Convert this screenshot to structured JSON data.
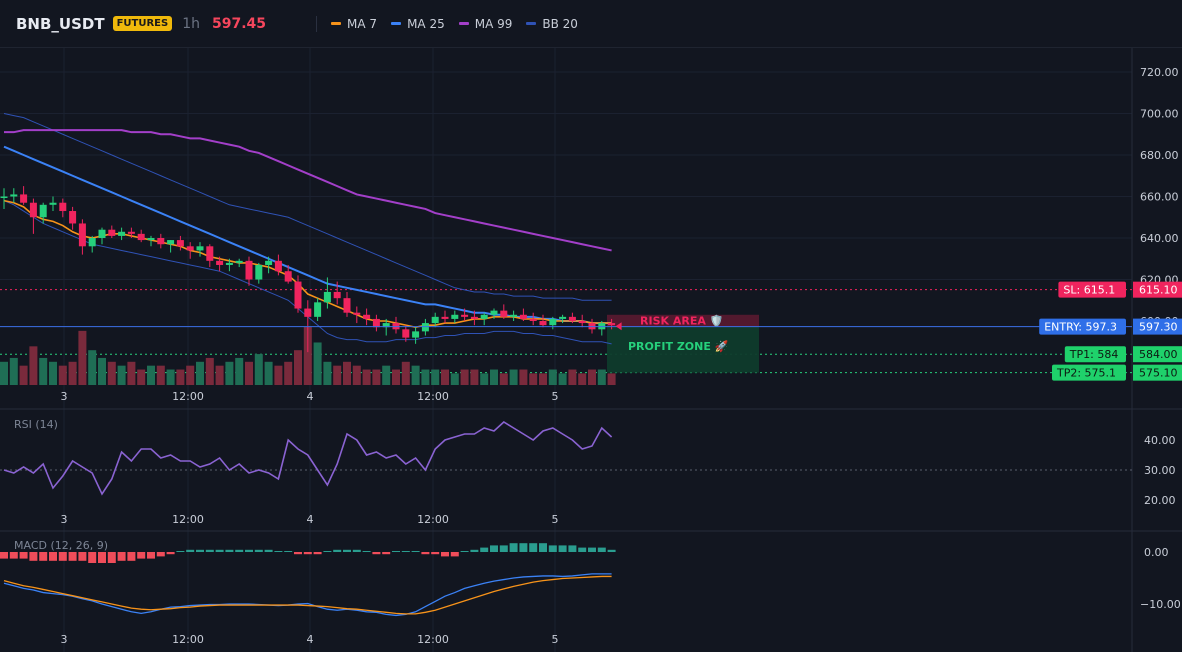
{
  "header": {
    "symbol": "BNB_USDT",
    "market_badge": "FUTURES",
    "timeframe": "1h",
    "last_price": "597.45",
    "legend": [
      {
        "label": "MA 7",
        "color": "#f7931a"
      },
      {
        "label": "MA 25",
        "color": "#3b82f6"
      },
      {
        "label": "MA 99",
        "color": "#a33fc9"
      },
      {
        "label": "BB 20",
        "color": "#2f52b5"
      }
    ]
  },
  "colors": {
    "up": "#26d07c",
    "down": "#f0245e",
    "background": "#121620",
    "grid": "#1b2130"
  },
  "price_axis_ticks": [
    "720.00",
    "700.00",
    "680.00",
    "660.00",
    "640.00",
    "620.00",
    "600.00"
  ],
  "time_axis_labels": [
    "3",
    "12:00",
    "4",
    "12:00",
    "5"
  ],
  "levels": {
    "sl": {
      "tag": "SL: 615.1",
      "value": "615.10"
    },
    "entry": {
      "tag": "ENTRY: 597.3",
      "value": "597.30"
    },
    "tp1": {
      "tag": "TP1: 584",
      "value": "584.00"
    },
    "tp2": {
      "tag": "TP2: 575.1",
      "value": "575.10"
    }
  },
  "zones": {
    "risk_label": "RISK AREA 🛡️",
    "profit_label": "PROFIT ZONE 🚀"
  },
  "rsi": {
    "title": "RSI (14)",
    "ticks": [
      "40.00",
      "30.00",
      "20.00"
    ]
  },
  "macd": {
    "title": "MACD (12, 26, 9)",
    "ticks": [
      "0.00",
      "−10.00"
    ]
  },
  "chart_data": {
    "type": "candlestick",
    "interval": "1h",
    "price_range": [
      572,
      732
    ],
    "series_names": [
      "MA 7",
      "MA 25",
      "MA 99",
      "BB 20"
    ],
    "candles": [
      {
        "o": 660,
        "h": 664,
        "l": 654,
        "c": 660
      },
      {
        "o": 660,
        "h": 664,
        "l": 657,
        "c": 661
      },
      {
        "o": 661,
        "h": 665,
        "l": 656,
        "c": 657
      },
      {
        "o": 657,
        "h": 659,
        "l": 642,
        "c": 650
      },
      {
        "o": 650,
        "h": 657,
        "l": 647,
        "c": 656
      },
      {
        "o": 656,
        "h": 660,
        "l": 653,
        "c": 657
      },
      {
        "o": 657,
        "h": 659,
        "l": 650,
        "c": 653
      },
      {
        "o": 653,
        "h": 655,
        "l": 644,
        "c": 647
      },
      {
        "o": 647,
        "h": 649,
        "l": 632,
        "c": 636
      },
      {
        "o": 636,
        "h": 641,
        "l": 633,
        "c": 640
      },
      {
        "o": 640,
        "h": 645,
        "l": 637,
        "c": 644
      },
      {
        "o": 644,
        "h": 646,
        "l": 640,
        "c": 641
      },
      {
        "o": 641,
        "h": 645,
        "l": 639,
        "c": 643
      },
      {
        "o": 643,
        "h": 645,
        "l": 640,
        "c": 642
      },
      {
        "o": 642,
        "h": 644,
        "l": 638,
        "c": 639
      },
      {
        "o": 639,
        "h": 641,
        "l": 636,
        "c": 640
      },
      {
        "o": 640,
        "h": 642,
        "l": 635,
        "c": 637
      },
      {
        "o": 637,
        "h": 639,
        "l": 633,
        "c": 639
      },
      {
        "o": 639,
        "h": 641,
        "l": 634,
        "c": 636
      },
      {
        "o": 636,
        "h": 638,
        "l": 630,
        "c": 634
      },
      {
        "o": 634,
        "h": 638,
        "l": 631,
        "c": 636
      },
      {
        "o": 636,
        "h": 637,
        "l": 626,
        "c": 629
      },
      {
        "o": 629,
        "h": 631,
        "l": 624,
        "c": 627
      },
      {
        "o": 627,
        "h": 630,
        "l": 624,
        "c": 628
      },
      {
        "o": 628,
        "h": 630,
        "l": 626,
        "c": 629
      },
      {
        "o": 629,
        "h": 631,
        "l": 617,
        "c": 620
      },
      {
        "o": 620,
        "h": 628,
        "l": 618,
        "c": 627
      },
      {
        "o": 627,
        "h": 631,
        "l": 623,
        "c": 629
      },
      {
        "o": 629,
        "h": 632,
        "l": 622,
        "c": 624
      },
      {
        "o": 624,
        "h": 627,
        "l": 618,
        "c": 619
      },
      {
        "o": 619,
        "h": 622,
        "l": 604,
        "c": 606
      },
      {
        "o": 606,
        "h": 610,
        "l": 585,
        "c": 602
      },
      {
        "o": 602,
        "h": 611,
        "l": 600,
        "c": 609
      },
      {
        "o": 609,
        "h": 621,
        "l": 606,
        "c": 614
      },
      {
        "o": 614,
        "h": 619,
        "l": 608,
        "c": 611
      },
      {
        "o": 611,
        "h": 614,
        "l": 602,
        "c": 604
      },
      {
        "o": 604,
        "h": 607,
        "l": 599,
        "c": 603
      },
      {
        "o": 603,
        "h": 606,
        "l": 598,
        "c": 601
      },
      {
        "o": 601,
        "h": 603,
        "l": 595,
        "c": 597
      },
      {
        "o": 597,
        "h": 601,
        "l": 593,
        "c": 599
      },
      {
        "o": 599,
        "h": 602,
        "l": 594,
        "c": 596
      },
      {
        "o": 596,
        "h": 598,
        "l": 590,
        "c": 592
      },
      {
        "o": 592,
        "h": 597,
        "l": 589,
        "c": 595
      },
      {
        "o": 595,
        "h": 601,
        "l": 593,
        "c": 599
      },
      {
        "o": 599,
        "h": 604,
        "l": 597,
        "c": 602
      },
      {
        "o": 602,
        "h": 605,
        "l": 599,
        "c": 601
      },
      {
        "o": 601,
        "h": 605,
        "l": 599,
        "c": 603
      },
      {
        "o": 603,
        "h": 606,
        "l": 600,
        "c": 602
      },
      {
        "o": 602,
        "h": 605,
        "l": 598,
        "c": 601
      },
      {
        "o": 601,
        "h": 604,
        "l": 598,
        "c": 603
      },
      {
        "o": 603,
        "h": 606,
        "l": 601,
        "c": 605
      },
      {
        "o": 605,
        "h": 608,
        "l": 601,
        "c": 602
      },
      {
        "o": 602,
        "h": 605,
        "l": 600,
        "c": 603
      },
      {
        "o": 603,
        "h": 606,
        "l": 600,
        "c": 601
      },
      {
        "o": 601,
        "h": 604,
        "l": 598,
        "c": 600
      },
      {
        "o": 600,
        "h": 603,
        "l": 597,
        "c": 598
      },
      {
        "o": 598,
        "h": 602,
        "l": 596,
        "c": 601
      },
      {
        "o": 601,
        "h": 603,
        "l": 599,
        "c": 602
      },
      {
        "o": 602,
        "h": 604,
        "l": 599,
        "c": 600
      },
      {
        "o": 600,
        "h": 603,
        "l": 597,
        "c": 599
      },
      {
        "o": 599,
        "h": 601,
        "l": 594,
        "c": 596
      },
      {
        "o": 596,
        "h": 600,
        "l": 593,
        "c": 599
      },
      {
        "o": 599,
        "h": 601,
        "l": 596,
        "c": 598
      }
    ],
    "volume": [
      6,
      7,
      5,
      10,
      7,
      6,
      5,
      6,
      14,
      9,
      7,
      6,
      5,
      6,
      4,
      5,
      5,
      4,
      4,
      5,
      6,
      7,
      5,
      6,
      7,
      6,
      8,
      6,
      5,
      6,
      9,
      15,
      11,
      6,
      5,
      6,
      5,
      4,
      4,
      5,
      4,
      6,
      5,
      4,
      4,
      4,
      3,
      4,
      4,
      3,
      4,
      3,
      4,
      4,
      3,
      3,
      4,
      3,
      4,
      3,
      4,
      4,
      3
    ],
    "ma7": [
      658,
      657,
      655,
      651,
      649,
      648,
      646,
      643,
      641,
      640,
      641,
      642,
      642,
      641,
      640,
      639,
      638,
      637,
      636,
      634,
      633,
      631,
      630,
      629,
      628,
      628,
      627,
      626,
      624,
      622,
      618,
      613,
      611,
      609,
      607,
      605,
      603,
      601,
      600,
      600,
      599,
      598,
      597,
      598,
      598,
      599,
      599,
      600,
      601,
      601,
      602,
      602,
      602,
      601,
      601,
      601,
      600,
      600,
      600,
      600,
      599,
      599,
      599
    ],
    "ma25": [
      684,
      682,
      680,
      678,
      676,
      674,
      672,
      670,
      668,
      666,
      664,
      662,
      660,
      658,
      656,
      654,
      652,
      650,
      648,
      646,
      644,
      642,
      640,
      638,
      636,
      634,
      632,
      630,
      628,
      626,
      624,
      622,
      620,
      618,
      617,
      616,
      615,
      614,
      613,
      612,
      611,
      610,
      609,
      608,
      608,
      607,
      606,
      605,
      604,
      604,
      603,
      603,
      602,
      602,
      602,
      601,
      601,
      600,
      600,
      600,
      599,
      599,
      599
    ],
    "ma99": [
      691,
      691,
      692,
      692,
      692,
      692,
      692,
      692,
      692,
      692,
      692,
      692,
      692,
      691,
      691,
      691,
      690,
      690,
      689,
      688,
      688,
      687,
      686,
      685,
      684,
      682,
      681,
      679,
      677,
      675,
      673,
      671,
      669,
      667,
      665,
      663,
      661,
      660,
      659,
      658,
      657,
      656,
      655,
      654,
      652,
      651,
      650,
      649,
      648,
      647,
      646,
      645,
      644,
      643,
      642,
      641,
      640,
      639,
      638,
      637,
      636,
      635,
      634
    ],
    "bb_upper": [
      700,
      699,
      698,
      696,
      694,
      692,
      690,
      688,
      686,
      684,
      682,
      680,
      678,
      676,
      674,
      672,
      670,
      668,
      666,
      664,
      662,
      660,
      658,
      656,
      655,
      654,
      653,
      652,
      651,
      650,
      648,
      646,
      644,
      642,
      640,
      638,
      636,
      634,
      632,
      630,
      628,
      626,
      624,
      622,
      620,
      618,
      616,
      615,
      614,
      614,
      613,
      613,
      612,
      612,
      612,
      611,
      611,
      611,
      611,
      610,
      610,
      610,
      610
    ],
    "bb_lower": [
      658,
      656,
      653,
      650,
      647,
      645,
      643,
      641,
      639,
      637,
      636,
      635,
      634,
      633,
      632,
      631,
      630,
      629,
      628,
      627,
      626,
      625,
      624,
      622,
      620,
      618,
      616,
      614,
      612,
      610,
      606,
      602,
      598,
      594,
      592,
      591,
      591,
      590,
      590,
      590,
      591,
      591,
      591,
      592,
      592,
      593,
      593,
      594,
      594,
      594,
      595,
      595,
      595,
      594,
      594,
      593,
      593,
      592,
      591,
      590,
      590,
      590,
      589
    ],
    "rsi": [
      30,
      29,
      31,
      29,
      32,
      24,
      28,
      33,
      31,
      29,
      22,
      27,
      36,
      33,
      37,
      37,
      34,
      35,
      33,
      33,
      31,
      32,
      34,
      30,
      32,
      29,
      30,
      29,
      27,
      40,
      37,
      35,
      30,
      25,
      32,
      42,
      40,
      35,
      36,
      34,
      35,
      32,
      34,
      30,
      37,
      40,
      41,
      42,
      42,
      44,
      43,
      46,
      44,
      42,
      40,
      43,
      44,
      42,
      40,
      37,
      38,
      44,
      41
    ],
    "macd_hist": [
      -3,
      -3,
      -3,
      -4,
      -4,
      -4,
      -4,
      -4,
      -4,
      -5,
      -5,
      -5,
      -4,
      -4,
      -3,
      -3,
      -2,
      -1,
      0,
      1,
      1,
      1,
      1,
      1,
      1,
      1,
      1,
      1,
      0,
      0,
      -1,
      -1,
      -1,
      0,
      1,
      1,
      1,
      0,
      -1,
      -1,
      0,
      0,
      0,
      -1,
      -1,
      -2,
      -2,
      0,
      1,
      2,
      3,
      3,
      4,
      4,
      4,
      4,
      3,
      3,
      3,
      2,
      2,
      2,
      1
    ],
    "macd_line": [
      -6,
      -6.5,
      -7,
      -7.3,
      -7.8,
      -8,
      -8.2,
      -8.5,
      -9,
      -9.4,
      -10,
      -10.5,
      -11,
      -11.5,
      -11.8,
      -11.5,
      -11,
      -10.6,
      -10.5,
      -10.3,
      -10.2,
      -10.1,
      -10.1,
      -10,
      -10,
      -10,
      -10.1,
      -10.2,
      -10.3,
      -10.2,
      -10,
      -9.9,
      -10.5,
      -11,
      -11.2,
      -11,
      -11.2,
      -11.5,
      -11.6,
      -12,
      -12.2,
      -12,
      -11.5,
      -10.5,
      -9.5,
      -8.5,
      -7.8,
      -7,
      -6.5,
      -6,
      -5.6,
      -5.3,
      -5,
      -4.8,
      -4.7,
      -4.6,
      -4.6,
      -4.7,
      -4.6,
      -4.4,
      -4.2,
      -4.2,
      -4.2
    ],
    "macd_signal": [
      -5.5,
      -6,
      -6.5,
      -6.8,
      -7.2,
      -7.6,
      -8,
      -8.4,
      -8.8,
      -9.2,
      -9.6,
      -10,
      -10.4,
      -10.8,
      -11,
      -11.1,
      -11,
      -10.9,
      -10.7,
      -10.6,
      -10.4,
      -10.3,
      -10.2,
      -10.2,
      -10.2,
      -10.2,
      -10.2,
      -10.2,
      -10.2,
      -10.2,
      -10.2,
      -10.3,
      -10.4,
      -10.5,
      -10.7,
      -10.9,
      -11,
      -11.2,
      -11.4,
      -11.6,
      -11.8,
      -11.9,
      -11.9,
      -11.6,
      -11.2,
      -10.6,
      -10,
      -9.4,
      -8.8,
      -8.2,
      -7.6,
      -7.1,
      -6.6,
      -6.2,
      -5.8,
      -5.5,
      -5.3,
      -5.1,
      -5,
      -4.9,
      -4.8,
      -4.7,
      -4.7
    ]
  }
}
